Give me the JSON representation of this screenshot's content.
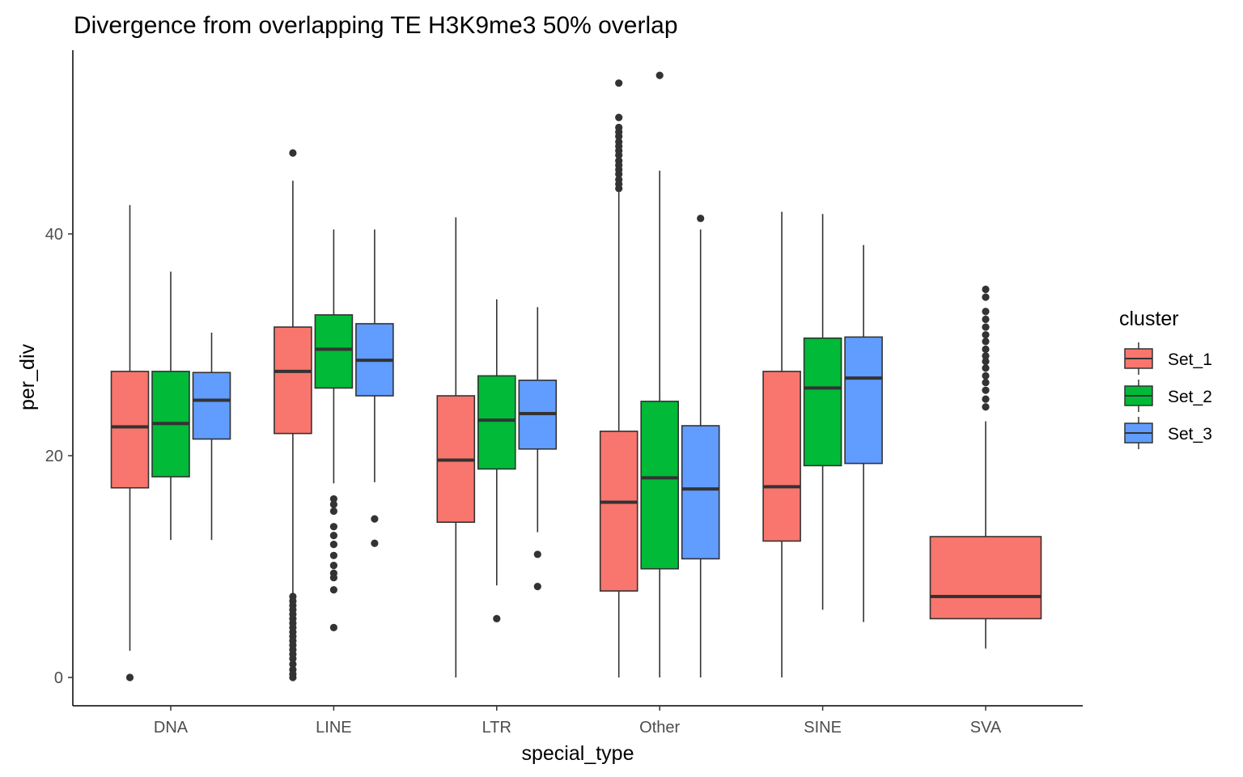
{
  "chart_data": {
    "type": "boxplot",
    "title": "Divergence from overlapping TE H3K9me3 50% overlap",
    "xlabel": "special_type",
    "ylabel": "per_div",
    "ylim": [
      -2.5,
      57
    ],
    "yticks": [
      0,
      20,
      40
    ],
    "categories": [
      "DNA",
      "LINE",
      "LTR",
      "Other",
      "SINE",
      "SVA"
    ],
    "legend": {
      "title": "cluster",
      "position": "right"
    },
    "grid": false,
    "series": [
      {
        "name": "Set_1",
        "color": "#F8766D",
        "boxes": [
          {
            "category": "DNA",
            "whisker_low": 2.4,
            "q1": 17.1,
            "median": 22.6,
            "q3": 27.6,
            "whisker_high": 42.6,
            "outliers": [
              0.0
            ]
          },
          {
            "category": "LINE",
            "whisker_low": 7.6,
            "q1": 22.0,
            "median": 27.6,
            "q3": 31.6,
            "whisker_high": 44.8,
            "outliers": [
              47.3,
              7.3,
              6.9,
              6.5,
              6.1,
              5.7,
              5.3,
              4.9,
              4.5,
              4.1,
              3.7,
              3.3,
              2.9,
              2.5,
              2.1,
              1.7,
              1.2,
              0.7,
              0.3,
              0.0
            ]
          },
          {
            "category": "LTR",
            "whisker_low": 0.0,
            "q1": 14.0,
            "median": 19.6,
            "q3": 25.4,
            "whisker_high": 41.5,
            "outliers": []
          },
          {
            "category": "Other",
            "whisker_low": 0.0,
            "q1": 7.8,
            "median": 15.8,
            "q3": 22.2,
            "whisker_high": 43.8,
            "outliers": [
              53.6,
              50.5,
              49.6,
              49.2,
              48.8,
              48.3,
              47.9,
              47.5,
              47.1,
              46.6,
              46.2,
              45.8,
              45.4,
              44.9,
              44.5,
              44.1
            ]
          },
          {
            "category": "SINE",
            "whisker_low": 0.0,
            "q1": 12.3,
            "median": 17.2,
            "q3": 27.6,
            "whisker_high": 42.0,
            "outliers": []
          },
          {
            "category": "SVA",
            "whisker_low": 2.6,
            "q1": 5.3,
            "median": 7.3,
            "q3": 12.7,
            "whisker_high": 23.1,
            "outliers": [
              35.0,
              34.3,
              33.0,
              32.3,
              31.6,
              30.9,
              30.3,
              29.6,
              29.0,
              28.5,
              27.9,
              27.2,
              26.6,
              25.9,
              25.1,
              24.4
            ]
          }
        ]
      },
      {
        "name": "Set_2",
        "color": "#00BA38",
        "boxes": [
          {
            "category": "DNA",
            "whisker_low": 12.4,
            "q1": 18.1,
            "median": 22.9,
            "q3": 27.6,
            "whisker_high": 36.6,
            "outliers": []
          },
          {
            "category": "LINE",
            "whisker_low": 17.5,
            "q1": 26.1,
            "median": 29.6,
            "q3": 32.7,
            "whisker_high": 40.4,
            "outliers": [
              16.1,
              15.6,
              15.0,
              13.6,
              12.8,
              12.0,
              11.0,
              10.1,
              9.4,
              9.0,
              7.9,
              4.5
            ]
          },
          {
            "category": "LTR",
            "whisker_low": 8.3,
            "q1": 18.8,
            "median": 23.2,
            "q3": 27.2,
            "whisker_high": 34.1,
            "outliers": [
              5.3
            ]
          },
          {
            "category": "Other",
            "whisker_low": 0.0,
            "q1": 9.8,
            "median": 18.0,
            "q3": 24.9,
            "whisker_high": 45.7,
            "outliers": [
              54.3
            ]
          },
          {
            "category": "SINE",
            "whisker_low": 6.1,
            "q1": 19.1,
            "median": 26.1,
            "q3": 30.6,
            "whisker_high": 41.8,
            "outliers": []
          }
        ]
      },
      {
        "name": "Set_3",
        "color": "#619CFF",
        "boxes": [
          {
            "category": "DNA",
            "whisker_low": 12.4,
            "q1": 21.5,
            "median": 25.0,
            "q3": 27.5,
            "whisker_high": 31.1,
            "outliers": []
          },
          {
            "category": "LINE",
            "whisker_low": 17.6,
            "q1": 25.4,
            "median": 28.6,
            "q3": 31.9,
            "whisker_high": 40.4,
            "outliers": [
              14.3,
              12.1
            ]
          },
          {
            "category": "LTR",
            "whisker_low": 13.1,
            "q1": 20.6,
            "median": 23.8,
            "q3": 26.8,
            "whisker_high": 33.4,
            "outliers": [
              11.1,
              8.2
            ]
          },
          {
            "category": "Other",
            "whisker_low": 0.0,
            "q1": 10.7,
            "median": 17.0,
            "q3": 22.7,
            "whisker_high": 40.4,
            "outliers": [
              41.4
            ]
          },
          {
            "category": "SINE",
            "whisker_low": 5.0,
            "q1": 19.3,
            "median": 27.0,
            "q3": 30.7,
            "whisker_high": 39.0,
            "outliers": []
          }
        ]
      }
    ]
  }
}
